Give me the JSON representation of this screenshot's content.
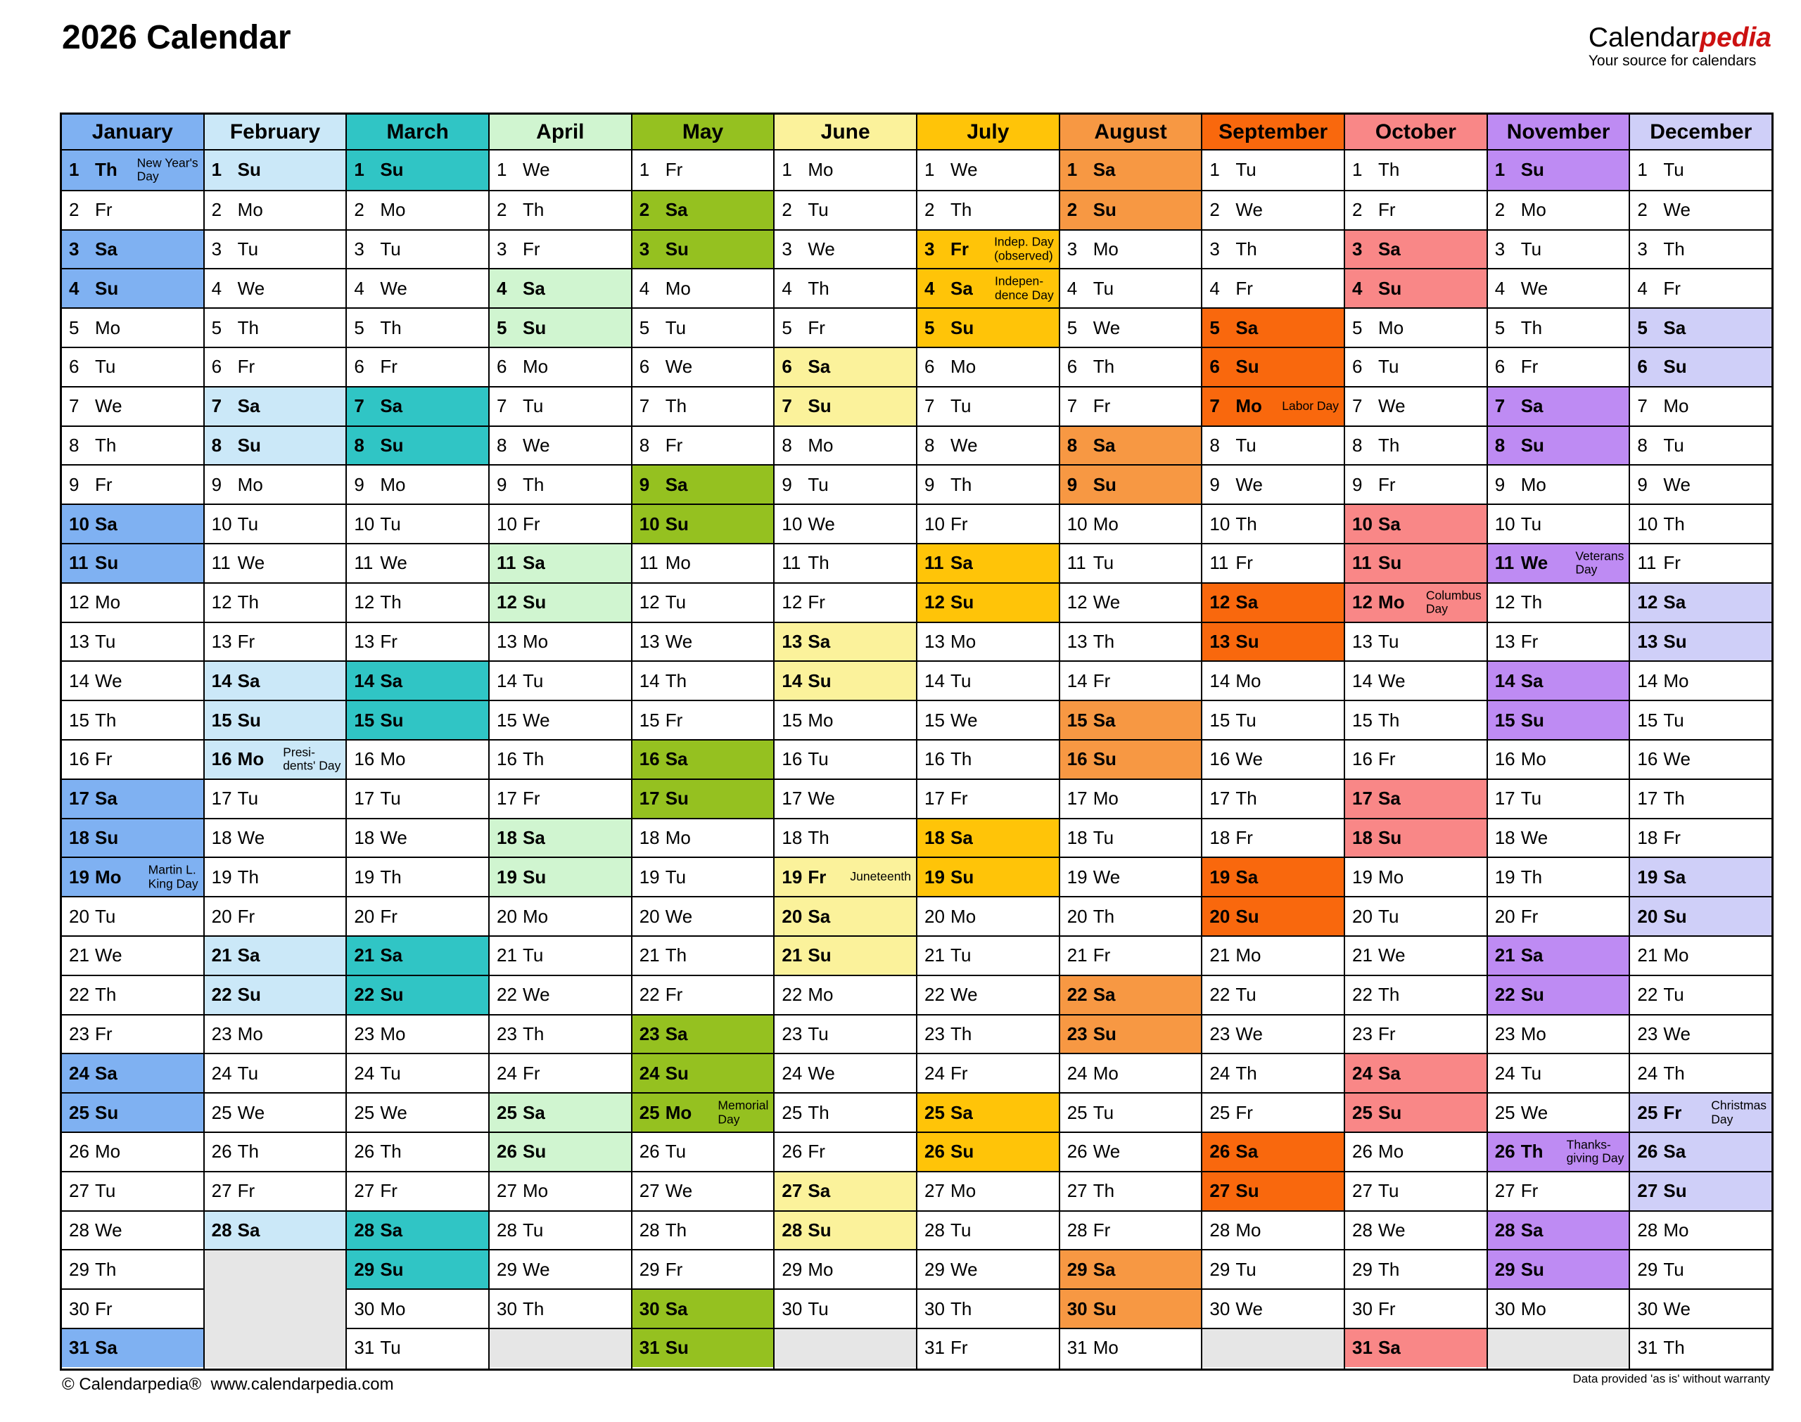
{
  "page": {
    "title": "2026 Calendar"
  },
  "logo": {
    "brand_black": "Calendar",
    "brand_red": "pedia",
    "tagline": "Your source for calendars"
  },
  "footer": {
    "copyright": "© Calendarpedia®",
    "url": "www.calendarpedia.com",
    "disclaimer": "Data provided 'as is' without warranty"
  },
  "colors": {
    "grid_border": "#000000",
    "empty_cell": "#e6e6e6",
    "logo_red": "#cc1111"
  },
  "months": [
    {
      "name": "January",
      "color": "#7fb1f2",
      "days": [
        "1 Th",
        "2 Fr",
        "3 Sa",
        "4 Su",
        "5 Mo",
        "6 Tu",
        "7 We",
        "8 Th",
        "9 Fr",
        "10 Sa",
        "11 Su",
        "12 Mo",
        "13 Tu",
        "14 We",
        "15 Th",
        "16 Fr",
        "17 Sa",
        "18 Su",
        "19 Mo",
        "20 Tu",
        "21 We",
        "22 Th",
        "23 Fr",
        "24 Sa",
        "25 Su",
        "26 Mo",
        "27 Tu",
        "28 We",
        "29 Th",
        "30 Fr",
        "31 Sa"
      ],
      "holidays": {
        "1": "New Year's\nDay",
        "19": "Martin L.\nKing Day"
      }
    },
    {
      "name": "February",
      "color": "#cbe8f8",
      "days": [
        "1 Su",
        "2 Mo",
        "3 Tu",
        "4 We",
        "5 Th",
        "6 Fr",
        "7 Sa",
        "8 Su",
        "9 Mo",
        "10 Tu",
        "11 We",
        "12 Th",
        "13 Fr",
        "14 Sa",
        "15 Su",
        "16 Mo",
        "17 Tu",
        "18 We",
        "19 Th",
        "20 Fr",
        "21 Sa",
        "22 Su",
        "23 Mo",
        "24 Tu",
        "25 We",
        "26 Th",
        "27 Fr",
        "28 Sa"
      ],
      "holidays": {
        "16": "Presi-\ndents' Day"
      }
    },
    {
      "name": "March",
      "color": "#30c5c5",
      "days": [
        "1 Su",
        "2 Mo",
        "3 Tu",
        "4 We",
        "5 Th",
        "6 Fr",
        "7 Sa",
        "8 Su",
        "9 Mo",
        "10 Tu",
        "11 We",
        "12 Th",
        "13 Fr",
        "14 Sa",
        "15 Su",
        "16 Mo",
        "17 Tu",
        "18 We",
        "19 Th",
        "20 Fr",
        "21 Sa",
        "22 Su",
        "23 Mo",
        "24 Tu",
        "25 We",
        "26 Th",
        "27 Fr",
        "28 Sa",
        "29 Su",
        "30 Mo",
        "31 Tu"
      ],
      "holidays": {}
    },
    {
      "name": "April",
      "color": "#d0f5d0",
      "days": [
        "1 We",
        "2 Th",
        "3 Fr",
        "4 Sa",
        "5 Su",
        "6 Mo",
        "7 Tu",
        "8 We",
        "9 Th",
        "10 Fr",
        "11 Sa",
        "12 Su",
        "13 Mo",
        "14 Tu",
        "15 We",
        "16 Th",
        "17 Fr",
        "18 Sa",
        "19 Su",
        "20 Mo",
        "21 Tu",
        "22 We",
        "23 Th",
        "24 Fr",
        "25 Sa",
        "26 Su",
        "27 Mo",
        "28 Tu",
        "29 We",
        "30 Th"
      ],
      "holidays": {}
    },
    {
      "name": "May",
      "color": "#95c120",
      "days": [
        "1 Fr",
        "2 Sa",
        "3 Su",
        "4 Mo",
        "5 Tu",
        "6 We",
        "7 Th",
        "8 Fr",
        "9 Sa",
        "10 Su",
        "11 Mo",
        "12 Tu",
        "13 We",
        "14 Th",
        "15 Fr",
        "16 Sa",
        "17 Su",
        "18 Mo",
        "19 Tu",
        "20 We",
        "21 Th",
        "22 Fr",
        "23 Sa",
        "24 Su",
        "25 Mo",
        "26 Tu",
        "27 We",
        "28 Th",
        "29 Fr",
        "30 Sa",
        "31 Su"
      ],
      "holidays": {
        "25": "Memorial\nDay"
      }
    },
    {
      "name": "June",
      "color": "#fbf29b",
      "days": [
        "1 Mo",
        "2 Tu",
        "3 We",
        "4 Th",
        "5 Fr",
        "6 Sa",
        "7 Su",
        "8 Mo",
        "9 Tu",
        "10 We",
        "11 Th",
        "12 Fr",
        "13 Sa",
        "14 Su",
        "15 Mo",
        "16 Tu",
        "17 We",
        "18 Th",
        "19 Fr",
        "20 Sa",
        "21 Su",
        "22 Mo",
        "23 Tu",
        "24 We",
        "25 Th",
        "26 Fr",
        "27 Sa",
        "28 Su",
        "29 Mo",
        "30 Tu"
      ],
      "holidays": {
        "19": "Juneteenth"
      }
    },
    {
      "name": "July",
      "color": "#ffc408",
      "days": [
        "1 We",
        "2 Th",
        "3 Fr",
        "4 Sa",
        "5 Su",
        "6 Mo",
        "7 Tu",
        "8 We",
        "9 Th",
        "10 Fr",
        "11 Sa",
        "12 Su",
        "13 Mo",
        "14 Tu",
        "15 We",
        "16 Th",
        "17 Fr",
        "18 Sa",
        "19 Su",
        "20 Mo",
        "21 Tu",
        "22 We",
        "23 Th",
        "24 Fr",
        "25 Sa",
        "26 Su",
        "27 Mo",
        "28 Tu",
        "29 We",
        "30 Th",
        "31 Fr"
      ],
      "holidays": {
        "3": "Indep. Day\n(observed)",
        "4": "Indepen-\ndence Day"
      }
    },
    {
      "name": "August",
      "color": "#f79843",
      "days": [
        "1 Sa",
        "2 Su",
        "3 Mo",
        "4 Tu",
        "5 We",
        "6 Th",
        "7 Fr",
        "8 Sa",
        "9 Su",
        "10 Mo",
        "11 Tu",
        "12 We",
        "13 Th",
        "14 Fr",
        "15 Sa",
        "16 Su",
        "17 Mo",
        "18 Tu",
        "19 We",
        "20 Th",
        "21 Fr",
        "22 Sa",
        "23 Su",
        "24 Mo",
        "25 Tu",
        "26 We",
        "27 Th",
        "28 Fr",
        "29 Sa",
        "30 Su",
        "31 Mo"
      ],
      "holidays": {}
    },
    {
      "name": "September",
      "color": "#f9680d",
      "days": [
        "1 Tu",
        "2 We",
        "3 Th",
        "4 Fr",
        "5 Sa",
        "6 Su",
        "7 Mo",
        "8 Tu",
        "9 We",
        "10 Th",
        "11 Fr",
        "12 Sa",
        "13 Su",
        "14 Mo",
        "15 Tu",
        "16 We",
        "17 Th",
        "18 Fr",
        "19 Sa",
        "20 Su",
        "21 Mo",
        "22 Tu",
        "23 We",
        "24 Th",
        "25 Fr",
        "26 Sa",
        "27 Su",
        "28 Mo",
        "29 Tu",
        "30 We"
      ],
      "holidays": {
        "7": "Labor Day"
      }
    },
    {
      "name": "October",
      "color": "#f98787",
      "days": [
        "1 Th",
        "2 Fr",
        "3 Sa",
        "4 Su",
        "5 Mo",
        "6 Tu",
        "7 We",
        "8 Th",
        "9 Fr",
        "10 Sa",
        "11 Su",
        "12 Mo",
        "13 Tu",
        "14 We",
        "15 Th",
        "16 Fr",
        "17 Sa",
        "18 Su",
        "19 Mo",
        "20 Tu",
        "21 We",
        "22 Th",
        "23 Fr",
        "24 Sa",
        "25 Su",
        "26 Mo",
        "27 Tu",
        "28 We",
        "29 Th",
        "30 Fr",
        "31 Sa"
      ],
      "holidays": {
        "12": "Columbus\nDay"
      }
    },
    {
      "name": "November",
      "color": "#be8bf3",
      "days": [
        "1 Su",
        "2 Mo",
        "3 Tu",
        "4 We",
        "5 Th",
        "6 Fr",
        "7 Sa",
        "8 Su",
        "9 Mo",
        "10 Tu",
        "11 We",
        "12 Th",
        "13 Fr",
        "14 Sa",
        "15 Su",
        "16 Mo",
        "17 Tu",
        "18 We",
        "19 Th",
        "20 Fr",
        "21 Sa",
        "22 Su",
        "23 Mo",
        "24 Tu",
        "25 We",
        "26 Th",
        "27 Fr",
        "28 Sa",
        "29 Su",
        "30 Mo"
      ],
      "holidays": {
        "11": "Veterans\nDay",
        "26": "Thanks-\ngiving Day"
      }
    },
    {
      "name": "December",
      "color": "#cfcff8",
      "days": [
        "1 Tu",
        "2 We",
        "3 Th",
        "4 Fr",
        "5 Sa",
        "6 Su",
        "7 Mo",
        "8 Tu",
        "9 We",
        "10 Th",
        "11 Fr",
        "12 Sa",
        "13 Su",
        "14 Mo",
        "15 Tu",
        "16 We",
        "17 Th",
        "18 Fr",
        "19 Sa",
        "20 Su",
        "21 Mo",
        "22 Tu",
        "23 We",
        "24 Th",
        "25 Fr",
        "26 Sa",
        "27 Su",
        "28 Mo",
        "29 Tu",
        "30 We",
        "31 Th"
      ],
      "holidays": {
        "25": "Christmas\nDay"
      }
    }
  ]
}
